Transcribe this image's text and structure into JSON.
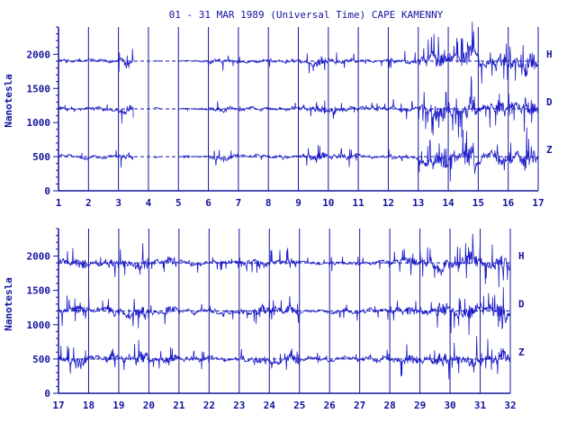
{
  "chart_data": {
    "type": "line",
    "title": "01 - 31 MAR 1989 (Universal Time) CAPE KAMENNY",
    "ylabel": "Nanotesla",
    "colors": {
      "ink": "#1414a0",
      "trace": "#1c1cc8"
    },
    "components": [
      {
        "name": "H",
        "baseline": 1900
      },
      {
        "name": "D",
        "baseline": 1200
      },
      {
        "name": "Z",
        "baseline": 500
      }
    ],
    "grid": {
      "vertical": "day boundaries",
      "horizontal": "dashed baselines"
    },
    "panels": [
      {
        "xlim": [
          1,
          17
        ],
        "ylim": [
          0,
          2400
        ],
        "xticks": [
          "1",
          "2",
          "3",
          "4",
          "5",
          "6",
          "7",
          "8",
          "9",
          "10",
          "11",
          "12",
          "13",
          "14",
          "15",
          "16",
          "17"
        ],
        "yticks": [
          "0",
          "500",
          "1000",
          "1500",
          "2000"
        ],
        "activity": [
          2,
          2,
          5,
          0,
          1,
          3,
          2,
          2,
          4,
          3,
          2,
          3,
          8,
          9,
          7,
          8
        ],
        "gaps": [
          [
            3.5,
            4.2
          ],
          [
            4.4,
            5.1
          ],
          [
            5.4,
            5.5
          ]
        ]
      },
      {
        "xlim": [
          17,
          32
        ],
        "ylim": [
          0,
          2400
        ],
        "xticks": [
          "17",
          "18",
          "19",
          "20",
          "21",
          "22",
          "23",
          "24",
          "25",
          "26",
          "27",
          "28",
          "29",
          "30",
          "31",
          "32"
        ],
        "yticks": [
          "0",
          "500",
          "1000",
          "1500",
          "2000"
        ],
        "activity": [
          5,
          4,
          6,
          4,
          3,
          3,
          4,
          4,
          2,
          3,
          3,
          5,
          6,
          7,
          7
        ],
        "gaps": []
      }
    ]
  }
}
